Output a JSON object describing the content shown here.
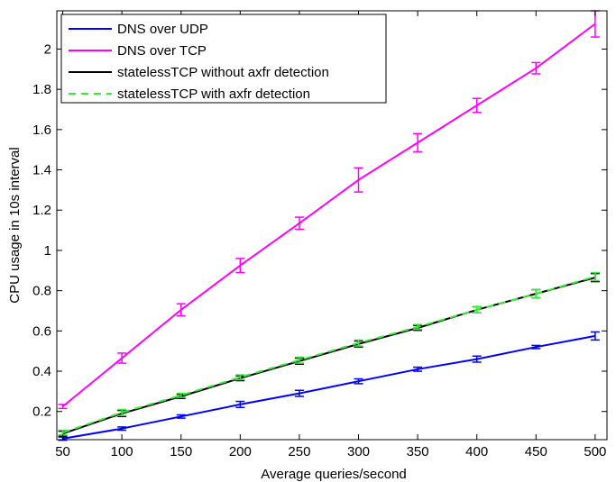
{
  "chart_data": {
    "type": "line",
    "title": "",
    "xlabel": "Average queries/second",
    "ylabel": "CPU usage in 10s interval",
    "xlim": [
      45,
      510
    ],
    "ylim": [
      0.06,
      2.19
    ],
    "xticks": [
      "50",
      "100",
      "150",
      "200",
      "250",
      "300",
      "350",
      "400",
      "450",
      "500"
    ],
    "yticks": [
      "0.2",
      "0.4",
      "0.6",
      "0.8",
      "1",
      "1.2",
      "1.4",
      "1.6",
      "1.8",
      "2"
    ],
    "grid": false,
    "legend_position": "top-left",
    "x": [
      50,
      100,
      150,
      200,
      250,
      300,
      350,
      400,
      450,
      500
    ],
    "series": [
      {
        "name": "DNS over UDP",
        "color": "#0000ff",
        "dash": "solid",
        "values": [
          0.065,
          0.115,
          0.175,
          0.235,
          0.29,
          0.35,
          0.41,
          0.46,
          0.52,
          0.575
        ],
        "errors": [
          0.008,
          0.008,
          0.008,
          0.015,
          0.015,
          0.012,
          0.01,
          0.015,
          0.008,
          0.02
        ]
      },
      {
        "name": "DNS over TCP",
        "color": "#ff00ff",
        "dash": "solid",
        "values": [
          0.225,
          0.465,
          0.705,
          0.925,
          1.135,
          1.35,
          1.535,
          1.72,
          1.905,
          2.125
        ],
        "errors": [
          0.01,
          0.025,
          0.03,
          0.035,
          0.03,
          0.06,
          0.045,
          0.035,
          0.028,
          0.065
        ]
      },
      {
        "name": "statelessTCP without axfr detection",
        "color": "#000000",
        "dash": "solid",
        "values": [
          0.09,
          0.19,
          0.275,
          0.365,
          0.45,
          0.535,
          0.615,
          0.705,
          0.785,
          0.865
        ],
        "errors": [
          0.012,
          0.015,
          0.01,
          0.012,
          0.015,
          0.015,
          0.012,
          0.015,
          0.02,
          0.02
        ]
      },
      {
        "name": "statelessTCP with axfr detection",
        "color": "#33ee33",
        "dash": "dashed",
        "values": [
          0.095,
          0.195,
          0.28,
          0.37,
          0.455,
          0.54,
          0.62,
          0.705,
          0.785,
          0.87
        ],
        "errors": [
          0.012,
          0.015,
          0.01,
          0.012,
          0.015,
          0.015,
          0.012,
          0.015,
          0.02,
          0.02
        ]
      }
    ]
  }
}
